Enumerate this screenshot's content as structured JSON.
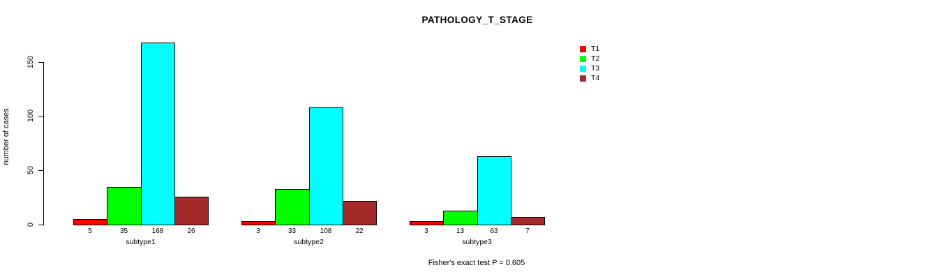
{
  "chart_data": {
    "type": "bar",
    "title": "PATHOLOGY_T_STAGE",
    "ylabel": "number of cases",
    "xlabel": "",
    "categories": [
      "subtype1",
      "subtype2",
      "subtype3"
    ],
    "series": [
      {
        "name": "T1",
        "color": "#FF0000",
        "values": [
          5,
          3,
          3
        ]
      },
      {
        "name": "T2",
        "color": "#00FF00",
        "values": [
          35,
          33,
          13
        ]
      },
      {
        "name": "T3",
        "color": "#00FFFF",
        "values": [
          168,
          108,
          63
        ]
      },
      {
        "name": "T4",
        "color": "#A52A2A",
        "values": [
          26,
          22,
          7
        ]
      }
    ],
    "bar_value_labels": {
      "subtype1": [
        5,
        35,
        168,
        26
      ],
      "subtype2": [
        3,
        33,
        108,
        22
      ],
      "subtype3": [
        3,
        13,
        63,
        7
      ]
    },
    "yticks": [
      0,
      50,
      100,
      150
    ],
    "ylim": [
      0,
      175
    ],
    "grid": false,
    "legend_position": "top-right",
    "legend_entries": [
      "T1",
      "T2",
      "T3",
      "T4"
    ],
    "annotation": "Fisher's exact test P = 0.605",
    "bar_border_color": "#000000",
    "background_color": "#FFFFFF"
  }
}
